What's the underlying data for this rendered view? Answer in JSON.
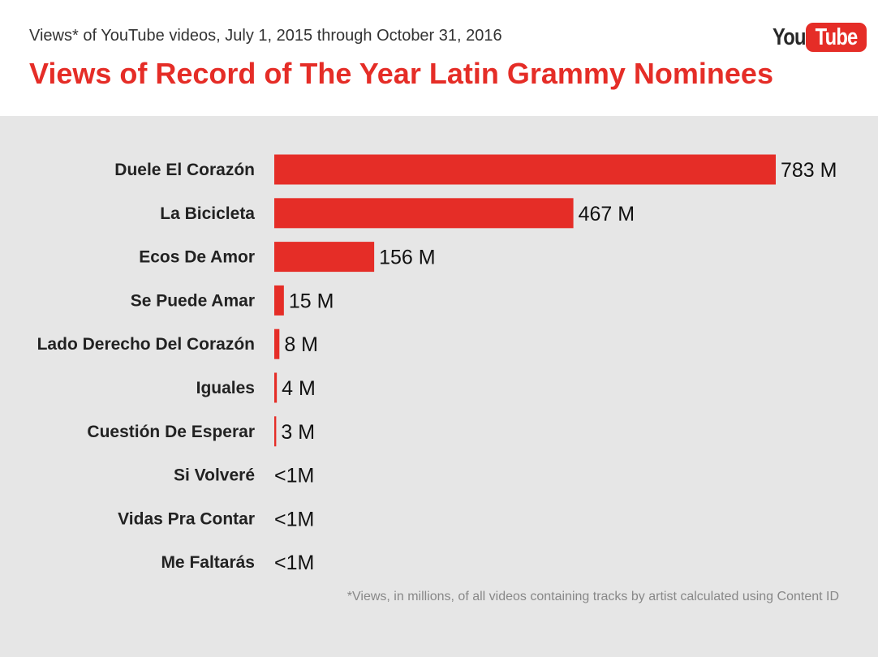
{
  "header": {
    "subtitle": "Views* of YouTube videos, July 1, 2015 through October 31, 2016",
    "title": "Views of Record of The Year Latin Grammy Nominees",
    "logo_you": "You",
    "logo_tube": "Tube"
  },
  "colors": {
    "bar": "#e52d27",
    "title": "#e52d27",
    "background": "#e6e6e6"
  },
  "footnote": "*Views, in millions, of all videos containing tracks by artist calculated using Content ID",
  "chart_data": {
    "type": "bar",
    "orientation": "horizontal",
    "title": "Views of Record of The Year Latin Grammy Nominees",
    "subtitle": "Views* of YouTube videos, July 1, 2015 through October 31, 2016",
    "xlabel": "",
    "ylabel": "",
    "grid": false,
    "legend": "none",
    "xlim": [
      0,
      783
    ],
    "categories": [
      "Duele El Corazón",
      "La Bicicleta",
      "Ecos De Amor",
      "Se Puede Amar",
      "Lado Derecho Del Corazón",
      "Iguales",
      "Cuestión De Esperar",
      "Si Volveré",
      "Vidas Pra Contar",
      "Me Faltarás"
    ],
    "values": [
      783,
      467,
      156,
      15,
      8,
      4,
      3,
      0,
      0,
      0
    ],
    "value_labels": [
      "783 M",
      "467 M",
      "156 M",
      "15 M",
      "8 M",
      "4 M",
      "3 M",
      "<1M",
      "<1M",
      "<1M"
    ],
    "units": "M"
  }
}
